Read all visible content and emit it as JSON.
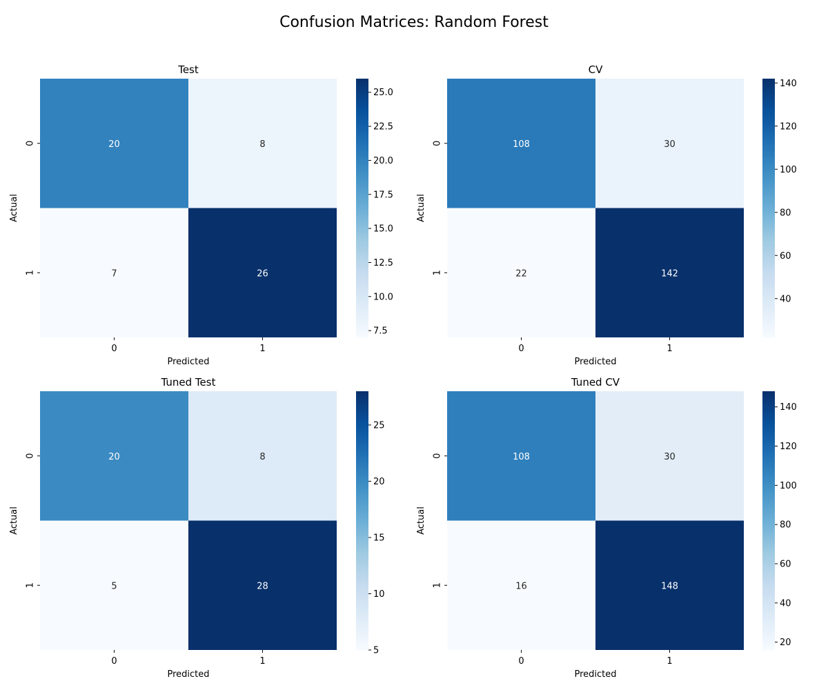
{
  "figure": {
    "title": "Confusion Matrices: Random Forest"
  },
  "colormap": {
    "name": "Blues",
    "stops": [
      "#f7fbff",
      "#deebf7",
      "#c6dbef",
      "#9ecae1",
      "#6baed6",
      "#4292c6",
      "#2171b5",
      "#08519c",
      "#08306b"
    ],
    "text_light": "#ffffff",
    "text_dark": "#262626"
  },
  "chart_data": [
    {
      "type": "heatmap",
      "title": "Test",
      "xlabel": "Predicted",
      "ylabel": "Actual",
      "x_categories": [
        "0",
        "1"
      ],
      "y_categories": [
        "0",
        "1"
      ],
      "values": [
        [
          20,
          8
        ],
        [
          7,
          26
        ]
      ],
      "vmin": 7,
      "vmax": 26,
      "colorbar_ticks": [
        "7.5",
        "10.0",
        "12.5",
        "15.0",
        "17.5",
        "20.0",
        "22.5",
        "25.0"
      ]
    },
    {
      "type": "heatmap",
      "title": "CV",
      "xlabel": "Predicted",
      "ylabel": "Actual",
      "x_categories": [
        "0",
        "1"
      ],
      "y_categories": [
        "0",
        "1"
      ],
      "values": [
        [
          108,
          30
        ],
        [
          22,
          142
        ]
      ],
      "vmin": 22,
      "vmax": 142,
      "colorbar_ticks": [
        "40",
        "60",
        "80",
        "100",
        "120",
        "140"
      ]
    },
    {
      "type": "heatmap",
      "title": "Tuned Test",
      "xlabel": "Predicted",
      "ylabel": "Actual",
      "x_categories": [
        "0",
        "1"
      ],
      "y_categories": [
        "0",
        "1"
      ],
      "values": [
        [
          20,
          8
        ],
        [
          5,
          28
        ]
      ],
      "vmin": 5,
      "vmax": 28,
      "colorbar_ticks": [
        "5",
        "10",
        "15",
        "20",
        "25"
      ]
    },
    {
      "type": "heatmap",
      "title": "Tuned CV",
      "xlabel": "Predicted",
      "ylabel": "Actual",
      "x_categories": [
        "0",
        "1"
      ],
      "y_categories": [
        "0",
        "1"
      ],
      "values": [
        [
          108,
          30
        ],
        [
          16,
          148
        ]
      ],
      "vmin": 16,
      "vmax": 148,
      "colorbar_ticks": [
        "20",
        "40",
        "60",
        "80",
        "100",
        "120",
        "140"
      ]
    }
  ]
}
